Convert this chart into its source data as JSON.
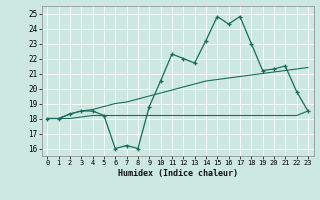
{
  "title": "",
  "xlabel": "Humidex (Indice chaleur)",
  "xlim": [
    -0.5,
    23.5
  ],
  "ylim": [
    15.5,
    25.5
  ],
  "yticks": [
    16,
    17,
    18,
    19,
    20,
    21,
    22,
    23,
    24,
    25
  ],
  "xticks": [
    0,
    1,
    2,
    3,
    4,
    5,
    6,
    7,
    8,
    9,
    10,
    11,
    12,
    13,
    14,
    15,
    16,
    17,
    18,
    19,
    20,
    21,
    22,
    23
  ],
  "bg_color": "#cce8e0",
  "line_color": "#1a6b5a",
  "series1": [
    18.0,
    18.0,
    18.3,
    18.5,
    18.5,
    18.2,
    16.0,
    16.2,
    16.0,
    18.8,
    20.5,
    22.3,
    22.0,
    21.7,
    23.2,
    24.8,
    24.3,
    24.8,
    23.0,
    21.2,
    21.3,
    21.5,
    19.8,
    18.5
  ],
  "series2": [
    18.0,
    18.0,
    18.0,
    18.1,
    18.2,
    18.2,
    18.2,
    18.2,
    18.2,
    18.2,
    18.2,
    18.2,
    18.2,
    18.2,
    18.2,
    18.2,
    18.2,
    18.2,
    18.2,
    18.2,
    18.2,
    18.2,
    18.2,
    18.5
  ],
  "series3": [
    18.0,
    18.0,
    18.3,
    18.5,
    18.6,
    18.8,
    19.0,
    19.1,
    19.3,
    19.5,
    19.7,
    19.9,
    20.1,
    20.3,
    20.5,
    20.6,
    20.7,
    20.8,
    20.9,
    21.0,
    21.1,
    21.2,
    21.3,
    21.4
  ]
}
